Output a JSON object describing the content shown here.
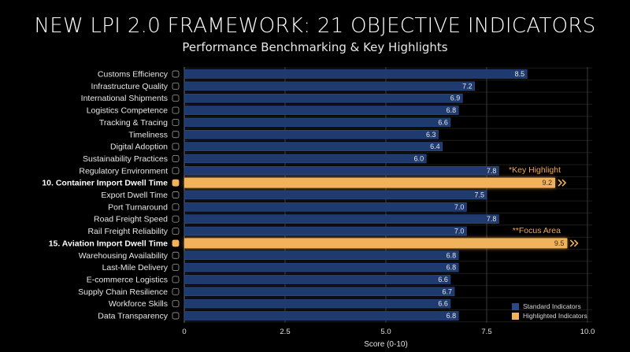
{
  "header": {
    "title": "NEW LPI 2.0 FRAMEWORK: 21 OBJECTIVE INDICATORS",
    "subtitle": "Performance Benchmarking & Key Highlights"
  },
  "legend": {
    "standard_label": "Standard Indicators",
    "highlight_label": "Highlighted Indicators"
  },
  "colors": {
    "background": "#000000",
    "standard_bar": "#1f3a6e",
    "standard_bar_edge": "#2f5391",
    "highlight_bar": "#f2b25c",
    "highlight_glow": "#f5a84a",
    "grid": "#3a3a3a",
    "text": "#e8e8e8",
    "highlight_text": "#f0a848"
  },
  "chart_data": {
    "type": "bar",
    "orientation": "horizontal",
    "title": "NEW LPI 2.0 FRAMEWORK: 21 OBJECTIVE INDICATORS",
    "subtitle": "Performance Benchmarking & Key Highlights",
    "xlabel": "Score (0-10)",
    "ylabel": "",
    "xlim": [
      0,
      10
    ],
    "xticks": [
      "0",
      "2.5",
      "5.0",
      "7.5",
      "10.0"
    ],
    "xtick_values": [
      0,
      2.5,
      5,
      7.5,
      10
    ],
    "grid": true,
    "legend_position": "bottom-right",
    "categories": [
      "Customs Efficiency",
      "Infrastructure Quality",
      "International Shipments",
      "Logistics Competence",
      "Tracking & Tracing",
      "Timeliness",
      "Digital Adoption",
      "Sustainability Practices",
      "Regulatory Environment",
      "10. Container Import Dwell Time",
      "Export Dwell Time",
      "Port Turnaround",
      "Road Freight Speed",
      "Rail Freight Reliability",
      "15. Aviation Import Dwell Time",
      "Warehousing Availability",
      "Last-Mile Delivery",
      "E-commerce Logistics",
      "Supply Chain Resilience",
      "Workforce Skills",
      "Data Transparency"
    ],
    "values": [
      8.5,
      7.2,
      6.9,
      6.8,
      6.6,
      6.3,
      6.4,
      6.0,
      7.8,
      9.2,
      7.5,
      7.0,
      7.8,
      7.0,
      9.5,
      6.8,
      6.8,
      6.6,
      6.7,
      6.6,
      6.8
    ],
    "value_labels": [
      "8.5",
      "7.2",
      "6.9",
      "6.8",
      "6.6",
      "6.3",
      "6.4",
      "6.0",
      "7.8",
      "9.2",
      "7.5",
      "7.0",
      "7.8",
      "7.0",
      "9.5",
      "6.8",
      "6.8",
      "6.6",
      "6.7",
      "6.6",
      "6.8"
    ],
    "highlighted": [
      false,
      false,
      false,
      false,
      false,
      false,
      false,
      false,
      false,
      true,
      false,
      false,
      false,
      false,
      true,
      false,
      false,
      false,
      false,
      false,
      false
    ],
    "icons": [
      "customs-icon",
      "infrastructure-icon",
      "globe-icon",
      "brain-icon",
      "magnifier-icon",
      "clock-icon",
      "phone-icon",
      "leaf-icon",
      "scales-icon",
      "ship-icon",
      "export-icon",
      "port-icon",
      "truck-icon",
      "train-icon",
      "plane-icon",
      "warehouse-icon",
      "van-icon",
      "cart-icon",
      "shield-icon",
      "people-icon",
      "clipboard-icon"
    ],
    "annotations": [
      {
        "category_index": 9,
        "text": "*Key Highlight"
      },
      {
        "category_index": 14,
        "text": "**Focus Area"
      }
    ],
    "series": [
      {
        "name": "Standard Indicators"
      },
      {
        "name": "Highlighted Indicators"
      }
    ]
  }
}
